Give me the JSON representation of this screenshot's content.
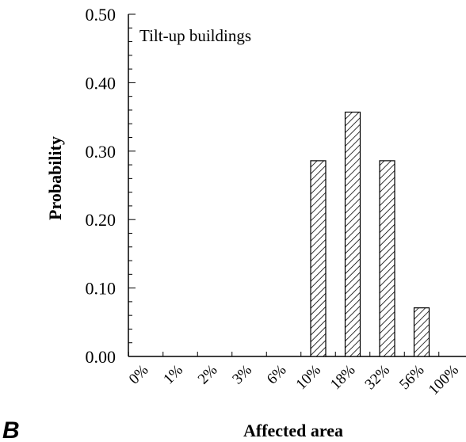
{
  "panel_label": "B",
  "chart_data": {
    "type": "bar",
    "title": "",
    "annotation": "Tilt-up buildings",
    "xlabel": "Affected area",
    "ylabel": "Probability",
    "categories": [
      "0%",
      "1%",
      "2%",
      "3%",
      "6%",
      "10%",
      "18%",
      "32%",
      "56%",
      "100%"
    ],
    "values": [
      0,
      0,
      0,
      0,
      0,
      0.286,
      0.357,
      0.286,
      0.071,
      0
    ],
    "ylim": [
      0,
      0.5
    ],
    "yticks": [
      "0.00",
      "0.10",
      "0.20",
      "0.30",
      "0.40",
      "0.50"
    ],
    "bar_fill": "hatched diagonal",
    "bar_color": "#000000",
    "grid": false,
    "legend": "none"
  }
}
